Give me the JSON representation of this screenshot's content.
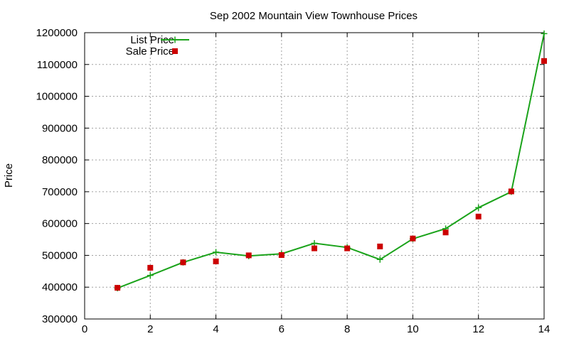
{
  "chart_data": {
    "type": "line",
    "title": "Sep 2002 Mountain View Townhouse Prices",
    "xlabel": "",
    "ylabel": "Price",
    "xlim": [
      0,
      14
    ],
    "ylim": [
      300000,
      1200000
    ],
    "x_ticks": [
      0,
      2,
      4,
      6,
      8,
      10,
      12,
      14
    ],
    "y_ticks": [
      300000,
      400000,
      500000,
      600000,
      700000,
      800000,
      900000,
      1000000,
      1100000,
      1200000
    ],
    "grid": true,
    "legend_position": "top-left",
    "series": [
      {
        "name": "List Price",
        "style": "line-with-plus-markers",
        "color": "#1aa31a",
        "x": [
          1,
          2,
          3,
          4,
          5,
          6,
          7,
          8,
          9,
          10,
          11,
          12,
          13,
          14
        ],
        "y": [
          397000,
          437000,
          478000,
          510000,
          498000,
          505000,
          538000,
          525000,
          487000,
          552000,
          584000,
          650000,
          700000,
          1197000
        ]
      },
      {
        "name": "Sale Price",
        "style": "square-markers",
        "color": "#cc0000",
        "x": [
          1,
          2,
          3,
          4,
          5,
          6,
          7,
          8,
          9,
          10,
          11,
          12,
          13,
          14
        ],
        "y": [
          398000,
          461000,
          478000,
          481000,
          500000,
          501000,
          522000,
          522000,
          528000,
          553000,
          572000,
          622000,
          701000,
          1111000
        ]
      }
    ]
  }
}
